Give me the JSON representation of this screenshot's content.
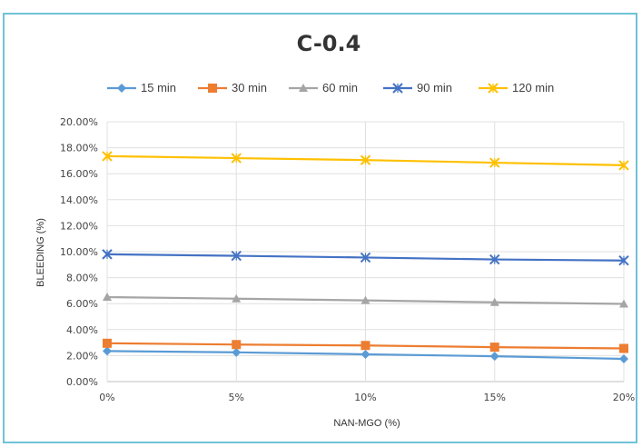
{
  "chart_data": {
    "type": "line",
    "title": "C-0.4",
    "xlabel": "NAN-MGO (%)",
    "ylabel": "BLEEDING (%)",
    "x": [
      "0%",
      "5%",
      "10%",
      "15%",
      "20%"
    ],
    "ylim": [
      0,
      0.2
    ],
    "y_ticks": [
      "0.00%",
      "2.00%",
      "4.00%",
      "6.00%",
      "8.00%",
      "10.00%",
      "12.00%",
      "14.00%",
      "16.00%",
      "18.00%",
      "20.00%"
    ],
    "grid": true,
    "legend_position": "top",
    "series": [
      {
        "name": "15 min",
        "color": "#5b9bd5",
        "marker": "diamond",
        "values": [
          0.0235,
          0.0225,
          0.021,
          0.0195,
          0.0175
        ]
      },
      {
        "name": "30 min",
        "color": "#ed7d31",
        "marker": "square",
        "values": [
          0.0295,
          0.0285,
          0.0278,
          0.0265,
          0.0255
        ]
      },
      {
        "name": "60 min",
        "color": "#a5a5a5",
        "marker": "triangle",
        "values": [
          0.065,
          0.0638,
          0.0625,
          0.061,
          0.0598
        ]
      },
      {
        "name": "90 min",
        "color": "#4472c4",
        "marker": "x",
        "values": [
          0.098,
          0.0968,
          0.0955,
          0.094,
          0.0932
        ]
      },
      {
        "name": "120 min",
        "color": "#ffc000",
        "marker": "x",
        "values": [
          0.1735,
          0.172,
          0.1705,
          0.1685,
          0.1665
        ]
      }
    ]
  }
}
